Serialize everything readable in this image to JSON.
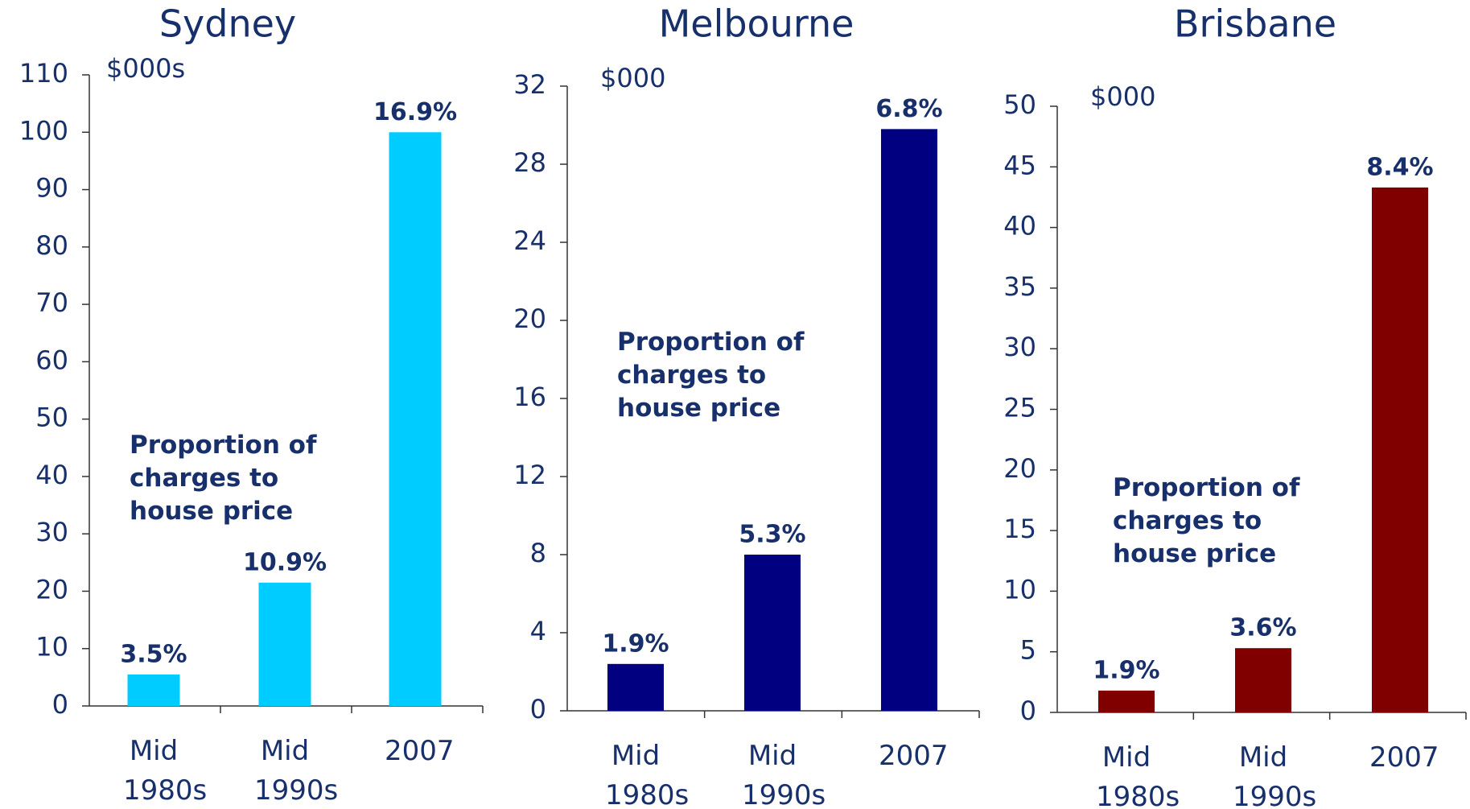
{
  "chart_data": [
    {
      "type": "bar",
      "title": "Sydney",
      "y_unit": "$000s",
      "annotation": "Proportion of charges to house price",
      "categories": [
        "Mid 1980s",
        "Mid 1990s",
        "2007"
      ],
      "values": [
        5.5,
        21.5,
        100
      ],
      "bar_labels": [
        "3.5%",
        "10.9%",
        "16.9%"
      ],
      "color": "#00ccff",
      "ylim": [
        0,
        110
      ],
      "yticks": [
        0,
        10,
        20,
        30,
        40,
        50,
        60,
        70,
        80,
        90,
        100,
        110
      ]
    },
    {
      "type": "bar",
      "title": "Melbourne",
      "y_unit": "$000",
      "annotation": "Proportion of charges to house price",
      "categories": [
        "Mid 1980s",
        "Mid 1990s",
        "2007"
      ],
      "values": [
        2.4,
        8,
        29.8
      ],
      "bar_labels": [
        "1.9%",
        "5.3%",
        "6.8%"
      ],
      "color": "#000080",
      "ylim": [
        0,
        32
      ],
      "yticks": [
        0,
        4,
        8,
        12,
        16,
        20,
        24,
        28,
        32
      ]
    },
    {
      "type": "bar",
      "title": "Brisbane",
      "y_unit": "$000",
      "annotation": "Proportion of charges to house price",
      "categories": [
        "Mid 1980s",
        "Mid 1990s",
        "2007"
      ],
      "values": [
        1.8,
        5.3,
        43.3
      ],
      "bar_labels": [
        "1.9%",
        "3.6%",
        "8.4%"
      ],
      "color": "#800000",
      "ylim": [
        0,
        50
      ],
      "yticks": [
        0,
        5,
        10,
        15,
        20,
        25,
        30,
        35,
        40,
        45,
        50
      ]
    }
  ]
}
